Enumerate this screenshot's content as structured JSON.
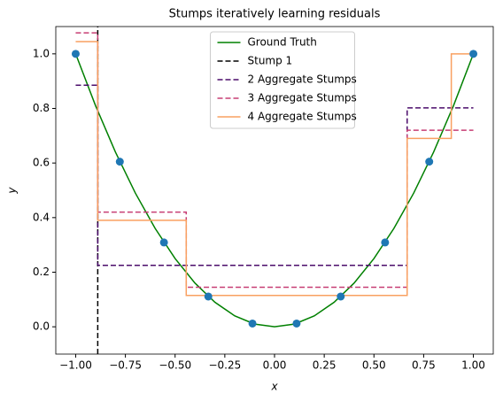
{
  "chart_data": {
    "type": "line",
    "title": "Stumps iteratively learning residuals",
    "x_label": "x",
    "y_label": "y",
    "xlim": [
      -1.1,
      1.1
    ],
    "ylim": [
      -0.1,
      1.1
    ],
    "xticks": [
      {
        "value": -1,
        "label": "−1.00"
      },
      {
        "value": -0.75,
        "label": "−0.75"
      },
      {
        "value": -0.5,
        "label": "−0.50"
      },
      {
        "value": -0.25,
        "label": "−0.25"
      },
      {
        "value": 0,
        "label": "0.00"
      },
      {
        "value": 0.25,
        "label": "0.25"
      },
      {
        "value": 0.5,
        "label": "0.50"
      },
      {
        "value": 0.75,
        "label": "0.75"
      },
      {
        "value": 1,
        "label": "1.00"
      }
    ],
    "yticks": [
      {
        "value": 0,
        "label": "0.0"
      },
      {
        "value": 0.2,
        "label": "0.2"
      },
      {
        "value": 0.4,
        "label": "0.4"
      },
      {
        "value": 0.6,
        "label": "0.6"
      },
      {
        "value": 0.8,
        "label": "0.8"
      },
      {
        "value": 1,
        "label": "1.0"
      }
    ],
    "legend": "upper center",
    "points": {
      "color": "#1f77b4",
      "x": [
        -1,
        -0.778,
        -0.556,
        -0.333,
        -0.111,
        0.111,
        0.333,
        0.556,
        0.778,
        1
      ],
      "values": [
        1,
        0.605,
        0.309,
        0.111,
        0.012,
        0.012,
        0.111,
        0.309,
        0.605,
        1
      ]
    },
    "series": [
      {
        "name": "Ground Truth",
        "color": "#008000",
        "dash": "none",
        "x": [
          -1,
          -0.9,
          -0.8,
          -0.7,
          -0.6,
          -0.5,
          -0.4,
          -0.3,
          -0.2,
          -0.1,
          0,
          0.1,
          0.2,
          0.3,
          0.4,
          0.5,
          0.6,
          0.7,
          0.8,
          0.9,
          1
        ],
        "values": [
          1,
          0.81,
          0.64,
          0.49,
          0.36,
          0.25,
          0.16,
          0.09,
          0.04,
          0.01,
          0,
          0.01,
          0.04,
          0.09,
          0.16,
          0.25,
          0.36,
          0.49,
          0.64,
          0.81,
          1
        ]
      },
      {
        "name": "Stump 1",
        "color": "#000000",
        "dash": "6,3",
        "x": [
          -0.889,
          -0.889
        ],
        "values": [
          -0.1,
          1.1
        ]
      },
      {
        "name": "2 Aggregate Stumps",
        "color": "#4b0c6b",
        "dash": "6,3",
        "x": [
          -1,
          -0.889,
          -0.889,
          0.667,
          0.667,
          1
        ],
        "values": [
          0.885,
          0.885,
          0.225,
          0.225,
          0.802,
          0.802
        ]
      },
      {
        "name": "3 Aggregate Stumps",
        "color": "#c73e74",
        "dash": "6,3",
        "x": [
          -1,
          -0.889,
          -0.889,
          -0.444,
          -0.444,
          0.667,
          0.667,
          1
        ],
        "values": [
          1.077,
          1.077,
          0.42,
          0.42,
          0.145,
          0.145,
          0.72,
          0.72
        ]
      },
      {
        "name": "4 Aggregate Stumps",
        "color": "#f9a061",
        "dash": "none",
        "x": [
          -1,
          -0.889,
          -0.889,
          -0.444,
          -0.444,
          0.667,
          0.667,
          0.889,
          0.889,
          1
        ],
        "values": [
          1.045,
          1.045,
          0.39,
          0.39,
          0.115,
          0.115,
          0.69,
          0.69,
          1,
          1
        ]
      }
    ]
  }
}
